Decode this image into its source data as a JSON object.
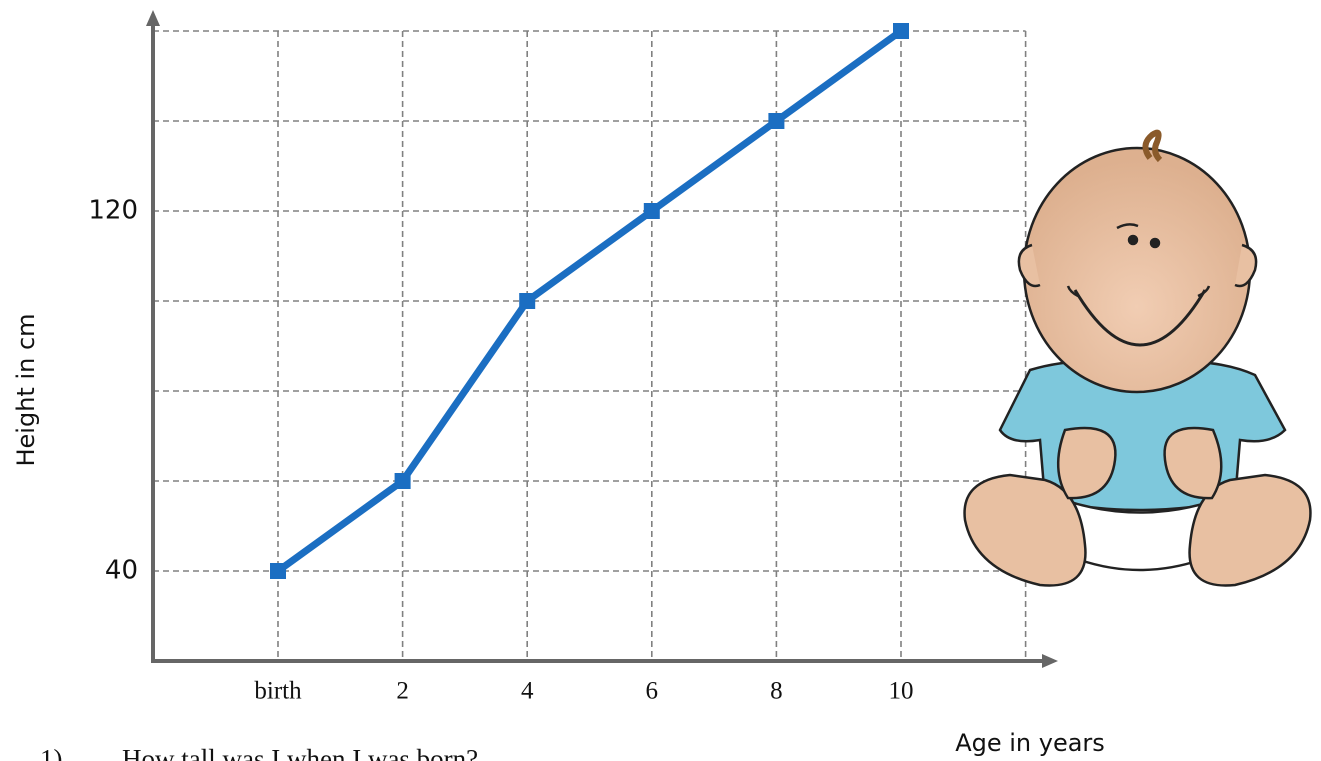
{
  "chart_data": {
    "type": "line",
    "x_label": "Age in years",
    "y_label": "Height in cm",
    "categories": [
      "birth",
      "2",
      "4",
      "6",
      "8",
      "10",
      null
    ],
    "values": [
      40,
      60,
      100,
      120,
      140,
      160,
      null
    ],
    "color": "#1b6ec2",
    "ylim": [
      20,
      160
    ],
    "yticks": [
      40,
      120
    ],
    "ygrid": [
      40,
      60,
      80,
      100,
      120,
      140,
      160
    ],
    "grid": true
  },
  "questions": [
    {
      "number": "1)",
      "text": "How tall was I when I was born?"
    }
  ]
}
